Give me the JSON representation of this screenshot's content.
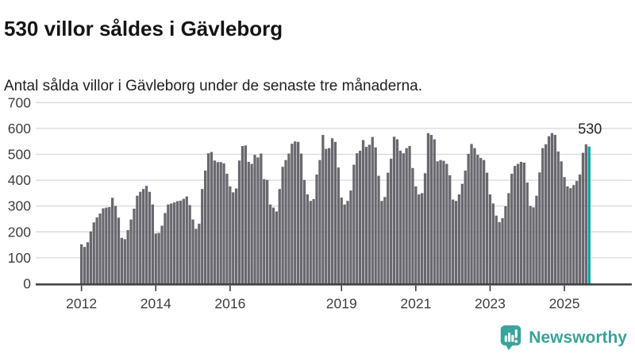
{
  "header": {
    "title": "530 villor såldes i Gävleborg",
    "subtitle": "Antal sålda villor i Gävleborg under de senaste tre månaderna."
  },
  "branding": {
    "name": "Newsworthy",
    "logo_color": "#3aa39b",
    "logo_icon": "speech-bubble-bar-chart-icon"
  },
  "chart_data": {
    "type": "bar",
    "title": "530 villor såldes i Gävleborg",
    "subtitle": "Antal sålda villor i Gävleborg under de senaste tre månaderna.",
    "ylabel": "",
    "xlabel": "",
    "ylim": [
      0,
      700
    ],
    "yticks": [
      0,
      100,
      200,
      300,
      400,
      500,
      600,
      700
    ],
    "grid": true,
    "legend_position": "none",
    "bar_color": "#69686f",
    "grid_color": "#d9d9d9",
    "axis_color": "#3d3d3d",
    "tick_label_color": "#3d3d3d",
    "annotation_color": "#222222",
    "xticks": [
      {
        "label": "2012",
        "index": 0
      },
      {
        "label": "2014",
        "index": 24
      },
      {
        "label": "2016",
        "index": 48
      },
      {
        "label": "2019",
        "index": 84
      },
      {
        "label": "2021",
        "index": 108
      },
      {
        "label": "2023",
        "index": 132
      },
      {
        "label": "2025",
        "index": 156
      }
    ],
    "highlight": {
      "index": 164,
      "value": 530,
      "label": "530",
      "color": "#00a3a4"
    },
    "x": [
      "2012-01",
      "2012-02",
      "2012-03",
      "2012-04",
      "2012-05",
      "2012-06",
      "2012-07",
      "2012-08",
      "2012-09",
      "2012-10",
      "2012-11",
      "2012-12",
      "2013-01",
      "2013-02",
      "2013-03",
      "2013-04",
      "2013-05",
      "2013-06",
      "2013-07",
      "2013-08",
      "2013-09",
      "2013-10",
      "2013-11",
      "2013-12",
      "2014-01",
      "2014-02",
      "2014-03",
      "2014-04",
      "2014-05",
      "2014-06",
      "2014-07",
      "2014-08",
      "2014-09",
      "2014-10",
      "2014-11",
      "2014-12",
      "2015-01",
      "2015-02",
      "2015-03",
      "2015-04",
      "2015-05",
      "2015-06",
      "2015-07",
      "2015-08",
      "2015-09",
      "2015-10",
      "2015-11",
      "2015-12",
      "2016-01",
      "2016-02",
      "2016-03",
      "2016-04",
      "2016-05",
      "2016-06",
      "2016-07",
      "2016-08",
      "2016-09",
      "2016-10",
      "2016-11",
      "2016-12",
      "2017-01",
      "2017-02",
      "2017-03",
      "2017-04",
      "2017-05",
      "2017-06",
      "2017-07",
      "2017-08",
      "2017-09",
      "2017-10",
      "2017-11",
      "2017-12",
      "2018-01",
      "2018-02",
      "2018-03",
      "2018-04",
      "2018-05",
      "2018-06",
      "2018-07",
      "2018-08",
      "2018-09",
      "2018-10",
      "2018-11",
      "2018-12",
      "2019-01",
      "2019-02",
      "2019-03",
      "2019-04",
      "2019-05",
      "2019-06",
      "2019-07",
      "2019-08",
      "2019-09",
      "2019-10",
      "2019-11",
      "2019-12",
      "2020-01",
      "2020-02",
      "2020-03",
      "2020-04",
      "2020-05",
      "2020-06",
      "2020-07",
      "2020-08",
      "2020-09",
      "2020-10",
      "2020-11",
      "2020-12",
      "2021-01",
      "2021-02",
      "2021-03",
      "2021-04",
      "2021-05",
      "2021-06",
      "2021-07",
      "2021-08",
      "2021-09",
      "2021-10",
      "2021-11",
      "2021-12",
      "2022-01",
      "2022-02",
      "2022-03",
      "2022-04",
      "2022-05",
      "2022-06",
      "2022-07",
      "2022-08",
      "2022-09",
      "2022-10",
      "2022-11",
      "2022-12",
      "2023-01",
      "2023-02",
      "2023-03",
      "2023-04",
      "2023-05",
      "2023-06",
      "2023-07",
      "2023-08",
      "2023-09",
      "2023-10",
      "2023-11",
      "2023-12",
      "2024-01",
      "2024-02",
      "2024-03",
      "2024-04",
      "2024-05",
      "2024-06",
      "2024-07",
      "2024-08",
      "2024-09",
      "2024-10",
      "2024-11",
      "2024-12",
      "2025-01",
      "2025-02",
      "2025-03",
      "2025-04",
      "2025-05",
      "2025-06",
      "2025-07",
      "2025-08",
      "2025-09"
    ],
    "values": [
      152,
      142,
      160,
      202,
      237,
      256,
      271,
      291,
      294,
      296,
      332,
      300,
      255,
      177,
      172,
      207,
      248,
      290,
      340,
      355,
      366,
      378,
      355,
      306,
      194,
      196,
      224,
      273,
      306,
      310,
      314,
      319,
      321,
      328,
      337,
      304,
      248,
      212,
      232,
      366,
      437,
      504,
      509,
      476,
      470,
      470,
      465,
      425,
      376,
      353,
      368,
      476,
      532,
      534,
      471,
      463,
      498,
      488,
      503,
      404,
      401,
      306,
      294,
      279,
      366,
      452,
      478,
      503,
      541,
      550,
      548,
      503,
      401,
      345,
      320,
      327,
      422,
      478,
      575,
      521,
      524,
      562,
      548,
      449,
      333,
      306,
      320,
      360,
      460,
      504,
      514,
      555,
      529,
      537,
      567,
      527,
      417,
      320,
      335,
      429,
      483,
      568,
      558,
      514,
      504,
      524,
      532,
      447,
      376,
      345,
      350,
      427,
      582,
      575,
      558,
      473,
      478,
      475,
      463,
      419,
      325,
      320,
      345,
      386,
      437,
      502,
      540,
      524,
      498,
      486,
      478,
      429,
      345,
      310,
      263,
      238,
      253,
      299,
      350,
      425,
      455,
      463,
      471,
      468,
      391,
      300,
      295,
      340,
      430,
      524,
      539,
      570,
      582,
      575,
      511,
      473,
      412,
      376,
      369,
      381,
      397,
      422,
      506,
      539,
      530
    ]
  }
}
